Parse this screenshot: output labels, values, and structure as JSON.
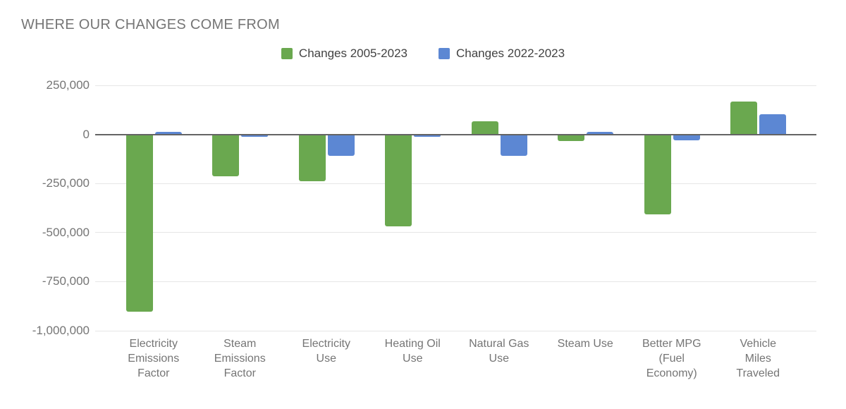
{
  "title": "WHERE OUR CHANGES COME FROM",
  "colors": {
    "series_green": "#6aa84f",
    "series_blue": "#5c87d3",
    "title_text": "#757575",
    "axis_text": "#757575",
    "legend_text": "#424242",
    "gridline": "#e6e6e6",
    "zero_line": "#646464",
    "background": "#ffffff"
  },
  "chart_data": {
    "type": "bar",
    "title": "WHERE OUR CHANGES COME FROM",
    "xlabel": "",
    "ylabel": "",
    "grid": true,
    "legend_position": "top",
    "ylim": [
      -1000000,
      250000
    ],
    "yticks": [
      250000,
      0,
      -250000,
      -500000,
      -750000,
      -1000000
    ],
    "ytick_labels": [
      "250,000",
      "0",
      "-250,000",
      "-500,000",
      "-750,000",
      "-1,000,000"
    ],
    "categories": [
      "Electricity\nEmissions\nFactor",
      "Steam\nEmissions\nFactor",
      "Electricity\nUse",
      "Heating Oil\nUse",
      "Natural Gas\nUse",
      "Steam Use",
      "Better MPG\n(Fuel\nEconomy)",
      "Vehicle\nMiles\nTraveled"
    ],
    "series": [
      {
        "name": "Changes 2005-2023",
        "color": "#6aa84f",
        "values": [
          -900000,
          -210000,
          -235000,
          -465000,
          65000,
          -30000,
          -405000,
          165000
        ]
      },
      {
        "name": "Changes 2022-2023",
        "color": "#5c87d3",
        "values": [
          10000,
          -10000,
          -105000,
          -10000,
          -105000,
          10000,
          -25000,
          100000
        ]
      }
    ]
  }
}
